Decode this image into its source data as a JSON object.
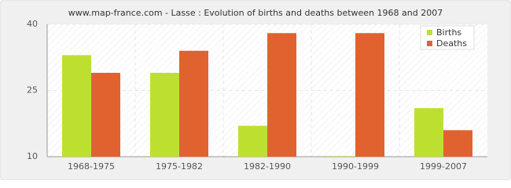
{
  "chart_data": {
    "type": "bar",
    "title": "www.map-france.com - Lasse : Evolution of births and deaths between 1968 and 2007",
    "categories": [
      "1968-1975",
      "1975-1982",
      "1982-1990",
      "1990-1999",
      "1999-2007"
    ],
    "series": [
      {
        "name": "Births",
        "color": "#bde030",
        "values": [
          33,
          29,
          17,
          10,
          21
        ]
      },
      {
        "name": "Deaths",
        "color": "#e0632f",
        "values": [
          29,
          34,
          38,
          38,
          16
        ]
      }
    ],
    "ylim": [
      10,
      40
    ],
    "yticks": [
      10,
      25,
      40
    ],
    "grid": true,
    "legend": "top-right"
  }
}
